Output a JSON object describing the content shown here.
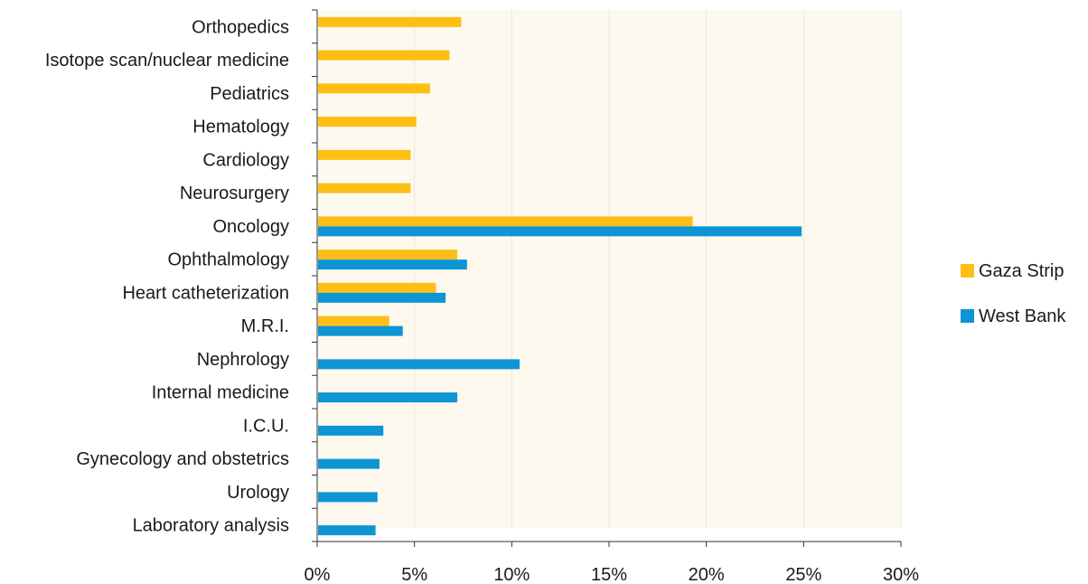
{
  "chart_data": {
    "type": "bar",
    "orientation": "horizontal",
    "categories": [
      "Orthopedics",
      "Isotope scan/nuclear medicine",
      "Pediatrics",
      "Hematology",
      "Cardiology",
      "Neurosurgery",
      "Oncology",
      "Ophthalmology",
      "Heart catheterization",
      "M.R.I.",
      "Nephrology",
      "Internal medicine",
      "I.C.U.",
      "Gynecology and obstetrics",
      "Urology",
      "Laboratory analysis"
    ],
    "series": [
      {
        "name": "Gaza Strip",
        "color": "#FDBF15",
        "values": [
          7.4,
          6.8,
          5.8,
          5.1,
          4.8,
          4.8,
          19.3,
          7.2,
          6.1,
          3.7,
          null,
          null,
          null,
          null,
          null,
          null
        ]
      },
      {
        "name": "West Bank",
        "color": "#0D95D4",
        "values": [
          null,
          null,
          null,
          null,
          null,
          null,
          24.9,
          7.7,
          6.6,
          4.4,
          10.4,
          7.2,
          3.4,
          3.2,
          3.1,
          3.0
        ]
      }
    ],
    "xlim": [
      0,
      30
    ],
    "xticks": [
      "0%",
      "5%",
      "10%",
      "15%",
      "20%",
      "25%",
      "30%"
    ],
    "grid": true,
    "legend_position": "right",
    "plot_background": "#FDF9EF"
  }
}
